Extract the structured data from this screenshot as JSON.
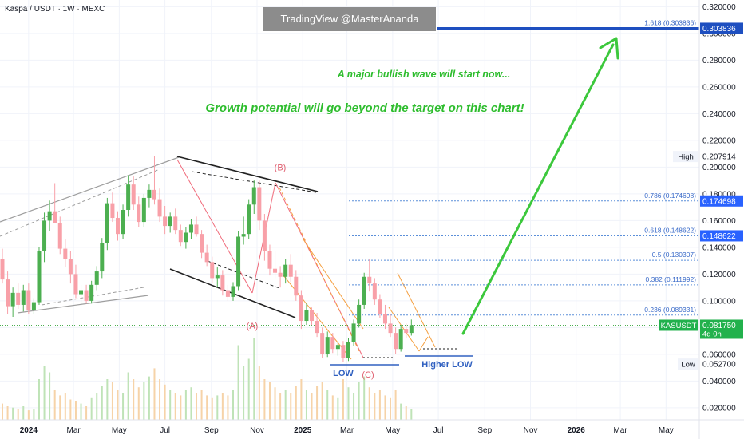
{
  "header": {
    "symbol_title": "Kaspa / USDT · 1W · MEXC",
    "watermark": "TradingView @MasterAnanda"
  },
  "annotations": {
    "headline_1": "A major bullish wave will start now...",
    "headline_2": "Growth potential will go beyond the target on this chart!",
    "wave_a": "(A)",
    "wave_b": "(B)",
    "wave_c": "(C)",
    "low_label": "LOW",
    "higher_low_label": "Higher LOW"
  },
  "colors": {
    "up": "#4caf50",
    "down": "#f8a0a8",
    "fib_line": "#5b8fd9",
    "target_line": "#1e4fc0",
    "arrow": "#3cc83c",
    "text_green": "#2ebd2e",
    "wave_red": "#e06070",
    "label_blue": "#3060c0"
  },
  "chart_data": {
    "type": "candlestick",
    "symbol": "KASUSDT",
    "timeframe": "1W",
    "exchange": "MEXC",
    "x_axis": {
      "ticks": [
        "2024",
        "Mar",
        "May",
        "Jul",
        "Sep",
        "Nov",
        "2025",
        "Mar",
        "May",
        "Jul",
        "Sep",
        "Nov",
        "2026",
        "Mar",
        "May"
      ],
      "tick_dates": [
        "2024-01-01",
        "2024-03-01",
        "2024-05-01",
        "2024-07-01",
        "2024-09-01",
        "2024-11-01",
        "2025-01-01",
        "2025-03-01",
        "2025-05-01",
        "2025-07-01",
        "2025-09-01",
        "2025-11-01",
        "2026-01-01",
        "2026-03-01",
        "2026-05-01"
      ]
    },
    "y_axis": {
      "ticks": [
        "0.320000",
        "0.300000",
        "0.280000",
        "0.260000",
        "0.240000",
        "0.220000",
        "0.200000",
        "0.180000",
        "0.160000",
        "0.140000",
        "0.120000",
        "0.100000",
        "0.080000",
        "0.060000",
        "0.040000",
        "0.020000"
      ],
      "tick_values": [
        0.32,
        0.3,
        0.28,
        0.26,
        0.24,
        0.22,
        0.2,
        0.18,
        0.16,
        0.14,
        0.12,
        0.1,
        0.08,
        0.06,
        0.04,
        0.02
      ],
      "range": [
        0.011,
        0.325
      ]
    },
    "price_badges": [
      {
        "label": "",
        "value": "0.303836",
        "price": 0.303836,
        "style": "target"
      },
      {
        "label": "High",
        "value": "0.207914",
        "price": 0.207914,
        "style": "plain"
      },
      {
        "label": "",
        "value": "0.174698",
        "price": 0.174698,
        "style": "fib"
      },
      {
        "label": "",
        "value": "0.148622",
        "price": 0.148622,
        "style": "fib"
      },
      {
        "label": "KASUSDT",
        "value": "0.081750",
        "sub": "4d 0h",
        "price": 0.08175,
        "style": "current"
      },
      {
        "label": "Low",
        "value": "0.052700",
        "price": 0.0527,
        "style": "plain"
      }
    ],
    "fib_levels": [
      {
        "label": "1.618 (0.303836)",
        "price": 0.303836
      },
      {
        "label": "0.786 (0.174698)",
        "price": 0.174698
      },
      {
        "label": "0.618 (0.148622)",
        "price": 0.148622
      },
      {
        "label": "0.5 (0.130307)",
        "price": 0.130307
      },
      {
        "label": "0.382 (0.111992)",
        "price": 0.111992
      },
      {
        "label": "0.236 (0.089331)",
        "price": 0.089331
      }
    ],
    "candles": [
      [
        0.131,
        0.139,
        0.113,
        0.116
      ],
      [
        0.116,
        0.122,
        0.09,
        0.096
      ],
      [
        0.096,
        0.11,
        0.088,
        0.106
      ],
      [
        0.106,
        0.113,
        0.094,
        0.097
      ],
      [
        0.097,
        0.112,
        0.092,
        0.108
      ],
      [
        0.108,
        0.113,
        0.09,
        0.093
      ],
      [
        0.093,
        0.102,
        0.09,
        0.099
      ],
      [
        0.099,
        0.14,
        0.097,
        0.137
      ],
      [
        0.137,
        0.166,
        0.129,
        0.16
      ],
      [
        0.16,
        0.175,
        0.152,
        0.167
      ],
      [
        0.167,
        0.188,
        0.16,
        0.158
      ],
      [
        0.158,
        0.163,
        0.135,
        0.139
      ],
      [
        0.139,
        0.146,
        0.125,
        0.131
      ],
      [
        0.131,
        0.137,
        0.113,
        0.12
      ],
      [
        0.12,
        0.127,
        0.102,
        0.105
      ],
      [
        0.105,
        0.112,
        0.096,
        0.108
      ],
      [
        0.108,
        0.112,
        0.098,
        0.1
      ],
      [
        0.1,
        0.115,
        0.098,
        0.112
      ],
      [
        0.112,
        0.126,
        0.108,
        0.122
      ],
      [
        0.122,
        0.147,
        0.117,
        0.143
      ],
      [
        0.143,
        0.177,
        0.138,
        0.173
      ],
      [
        0.173,
        0.181,
        0.159,
        0.162
      ],
      [
        0.162,
        0.167,
        0.145,
        0.15
      ],
      [
        0.15,
        0.172,
        0.146,
        0.168
      ],
      [
        0.168,
        0.194,
        0.163,
        0.187
      ],
      [
        0.187,
        0.193,
        0.168,
        0.172
      ],
      [
        0.172,
        0.178,
        0.155,
        0.159
      ],
      [
        0.159,
        0.18,
        0.155,
        0.177
      ],
      [
        0.177,
        0.187,
        0.17,
        0.183
      ],
      [
        0.183,
        0.208,
        0.172,
        0.176
      ],
      [
        0.176,
        0.184,
        0.159,
        0.163
      ],
      [
        0.163,
        0.171,
        0.15,
        0.156
      ],
      [
        0.156,
        0.166,
        0.151,
        0.163
      ],
      [
        0.163,
        0.169,
        0.15,
        0.153
      ],
      [
        0.153,
        0.157,
        0.141,
        0.144
      ],
      [
        0.144,
        0.155,
        0.139,
        0.151
      ],
      [
        0.151,
        0.161,
        0.146,
        0.157
      ],
      [
        0.157,
        0.163,
        0.148,
        0.15
      ],
      [
        0.15,
        0.153,
        0.132,
        0.136
      ],
      [
        0.136,
        0.142,
        0.126,
        0.129
      ],
      [
        0.129,
        0.133,
        0.113,
        0.117
      ],
      [
        0.117,
        0.125,
        0.11,
        0.119
      ],
      [
        0.119,
        0.123,
        0.104,
        0.108
      ],
      [
        0.108,
        0.112,
        0.1,
        0.103
      ],
      [
        0.103,
        0.114,
        0.1,
        0.111
      ],
      [
        0.111,
        0.152,
        0.108,
        0.148
      ],
      [
        0.148,
        0.163,
        0.142,
        0.15
      ],
      [
        0.15,
        0.176,
        0.146,
        0.172
      ],
      [
        0.172,
        0.19,
        0.165,
        0.185
      ],
      [
        0.185,
        0.19,
        0.153,
        0.16
      ],
      [
        0.16,
        0.165,
        0.13,
        0.137
      ],
      [
        0.137,
        0.142,
        0.119,
        0.124
      ],
      [
        0.124,
        0.137,
        0.117,
        0.121
      ],
      [
        0.121,
        0.126,
        0.11,
        0.118
      ],
      [
        0.118,
        0.131,
        0.113,
        0.127
      ],
      [
        0.127,
        0.135,
        0.114,
        0.118
      ],
      [
        0.118,
        0.123,
        0.1,
        0.104
      ],
      [
        0.104,
        0.108,
        0.079,
        0.085
      ],
      [
        0.085,
        0.098,
        0.082,
        0.093
      ],
      [
        0.093,
        0.095,
        0.082,
        0.085
      ],
      [
        0.085,
        0.091,
        0.073,
        0.076
      ],
      [
        0.076,
        0.08,
        0.057,
        0.06
      ],
      [
        0.06,
        0.077,
        0.058,
        0.073
      ],
      [
        0.073,
        0.076,
        0.061,
        0.064
      ],
      [
        0.064,
        0.069,
        0.059,
        0.067
      ],
      [
        0.067,
        0.07,
        0.054,
        0.057
      ],
      [
        0.057,
        0.072,
        0.055,
        0.069
      ],
      [
        0.069,
        0.086,
        0.066,
        0.083
      ],
      [
        0.083,
        0.101,
        0.08,
        0.097
      ],
      [
        0.097,
        0.121,
        0.094,
        0.118
      ],
      [
        0.118,
        0.131,
        0.107,
        0.113
      ],
      [
        0.113,
        0.117,
        0.097,
        0.101
      ],
      [
        0.101,
        0.105,
        0.087,
        0.09
      ],
      [
        0.09,
        0.097,
        0.079,
        0.083
      ],
      [
        0.083,
        0.09,
        0.073,
        0.076
      ],
      [
        0.076,
        0.08,
        0.06,
        0.064
      ],
      [
        0.064,
        0.082,
        0.062,
        0.079
      ],
      [
        0.079,
        0.083,
        0.072,
        0.076
      ],
      [
        0.076,
        0.086,
        0.074,
        0.0818
      ]
    ],
    "volumes": [
      12,
      10,
      9,
      8,
      10,
      7,
      8,
      30,
      40,
      35,
      22,
      18,
      20,
      15,
      14,
      12,
      10,
      16,
      20,
      25,
      30,
      28,
      22,
      20,
      35,
      30,
      24,
      28,
      32,
      38,
      30,
      26,
      22,
      20,
      18,
      22,
      24,
      20,
      22,
      18,
      16,
      18,
      20,
      18,
      22,
      55,
      40,
      45,
      60,
      40,
      30,
      28,
      24,
      20,
      22,
      20,
      25,
      30,
      22,
      20,
      25,
      28,
      22,
      18,
      16,
      30,
      24,
      20,
      28,
      32,
      24,
      20,
      22,
      18,
      16,
      22,
      12,
      10,
      8
    ],
    "waves": [
      {
        "label": "(A)",
        "price": 0.0815
      },
      {
        "label": "(B)",
        "price": 0.2
      },
      {
        "label": "(C)",
        "price": 0.045
      }
    ],
    "notes": [
      {
        "text": "LOW",
        "price": 0.048
      },
      {
        "text": "Higher LOW",
        "price": 0.0525
      }
    ],
    "target": {
      "label": "1.618 (0.303836)",
      "price": 0.303836
    }
  }
}
